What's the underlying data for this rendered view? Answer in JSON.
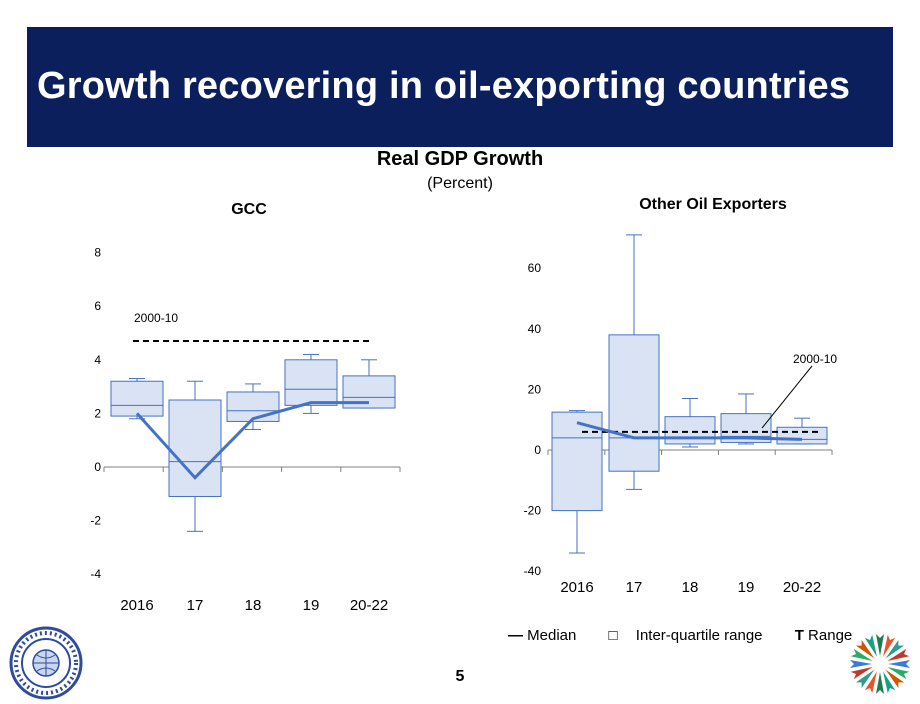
{
  "slide": {
    "title": "Growth recovering in oil-exporting countries",
    "chart_title": "Real GDP Growth",
    "chart_subtitle": "(Percent)",
    "page_number": "5"
  },
  "legend": {
    "median_symbol": "—",
    "median": "Median",
    "iqr_symbol": "□",
    "iqr": "Inter-quartile range",
    "range_symbol": "T",
    "range": "Range"
  },
  "logos": {
    "left": "imf-seal-icon",
    "right": "star-emblem-icon"
  },
  "colors": {
    "banner": "#0b1f5c",
    "box_fill": "#dae3f3",
    "box_stroke": "#4472c4",
    "median": "#4472c4",
    "reference": "#000000"
  },
  "chart_data": [
    {
      "type": "boxplot",
      "title": "GCC",
      "categories": [
        "2016",
        "17",
        "18",
        "19",
        "20-22"
      ],
      "yticks": [
        "8",
        "6",
        "4",
        "2",
        "0",
        "-2",
        "-4"
      ],
      "ylim": [
        -4,
        8
      ],
      "boxes": [
        {
          "min": 1.8,
          "q1": 1.9,
          "median": 2.3,
          "q3": 3.2,
          "max": 3.3
        },
        {
          "min": -2.4,
          "q1": -1.1,
          "median": 0.2,
          "q3": 2.5,
          "max": 3.2
        },
        {
          "min": 1.4,
          "q1": 1.7,
          "median": 2.1,
          "q3": 2.8,
          "max": 3.1
        },
        {
          "min": 2.0,
          "q1": 2.3,
          "median": 2.9,
          "q3": 4.0,
          "max": 4.2
        },
        {
          "min": 2.2,
          "q1": 2.2,
          "median": 2.6,
          "q3": 3.4,
          "max": 4.0
        }
      ],
      "median_line": [
        2.0,
        -0.4,
        1.8,
        2.4,
        2.4
      ],
      "reference": {
        "label": "2000-10",
        "value": 4.7
      }
    },
    {
      "type": "boxplot",
      "title": "Other Oil Exporters",
      "categories": [
        "2016",
        "17",
        "18",
        "19",
        "20-22"
      ],
      "yticks": [
        "60",
        "40",
        "20",
        "0",
        "-20",
        "-40"
      ],
      "ylim": [
        -40,
        70
      ],
      "boxes": [
        {
          "min": -34,
          "q1": -20,
          "median": 4,
          "q3": 12.5,
          "max": 13
        },
        {
          "min": -13,
          "q1": -7,
          "median": 4,
          "q3": 38,
          "max": 71
        },
        {
          "min": 1,
          "q1": 2,
          "median": 4,
          "q3": 11,
          "max": 17
        },
        {
          "min": 2,
          "q1": 2.5,
          "median": 4.5,
          "q3": 12,
          "max": 18.5
        },
        {
          "min": 2,
          "q1": 2,
          "median": 3.5,
          "q3": 7.5,
          "max": 10.5
        }
      ],
      "median_line": [
        9,
        4,
        4,
        4,
        3.5
      ],
      "reference": {
        "label": "2000-10",
        "value": 6
      }
    }
  ]
}
